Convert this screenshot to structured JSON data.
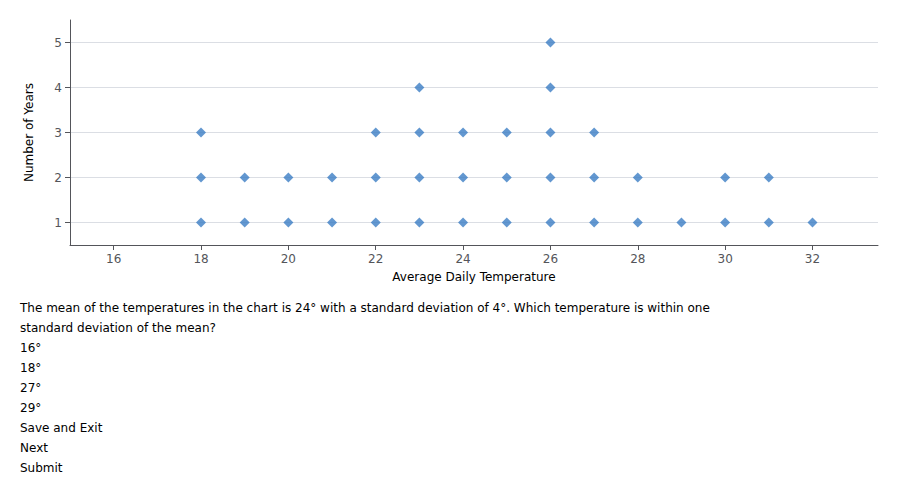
{
  "chart_data": {
    "type": "scatter",
    "xlabel": "Average Daily Temperature",
    "ylabel": "Number of Years",
    "x": [
      18,
      19,
      20,
      21,
      22,
      23,
      24,
      25,
      26,
      27,
      28,
      29,
      30,
      31,
      32,
      18,
      19,
      20,
      21,
      22,
      23,
      24,
      25,
      26,
      27,
      28,
      30,
      31,
      18,
      22,
      23,
      24,
      25,
      26,
      27,
      23,
      26,
      26
    ],
    "values": [
      1,
      1,
      1,
      1,
      1,
      1,
      1,
      1,
      1,
      1,
      1,
      1,
      1,
      1,
      1,
      2,
      2,
      2,
      2,
      2,
      2,
      2,
      2,
      2,
      2,
      2,
      2,
      2,
      3,
      3,
      3,
      3,
      3,
      3,
      3,
      4,
      4,
      5
    ],
    "xlim": [
      15,
      33.5
    ],
    "ylim": [
      0.5,
      5.5
    ],
    "xticks": [
      16,
      18,
      20,
      22,
      24,
      26,
      28,
      30,
      32
    ],
    "yticks": [
      1,
      2,
      3,
      4,
      5
    ],
    "color": "#3B7DC4",
    "marker": "diamond",
    "grid": true,
    "annotations": [
      "The mean of the temperatures in the chart is 24° with a standard deviation of 4°. Which temperature is within one",
      "standard deviation of the mean?",
      "16°",
      "18°",
      "27°",
      "29°",
      "Save and Exit",
      "Next",
      "Submit"
    ]
  }
}
